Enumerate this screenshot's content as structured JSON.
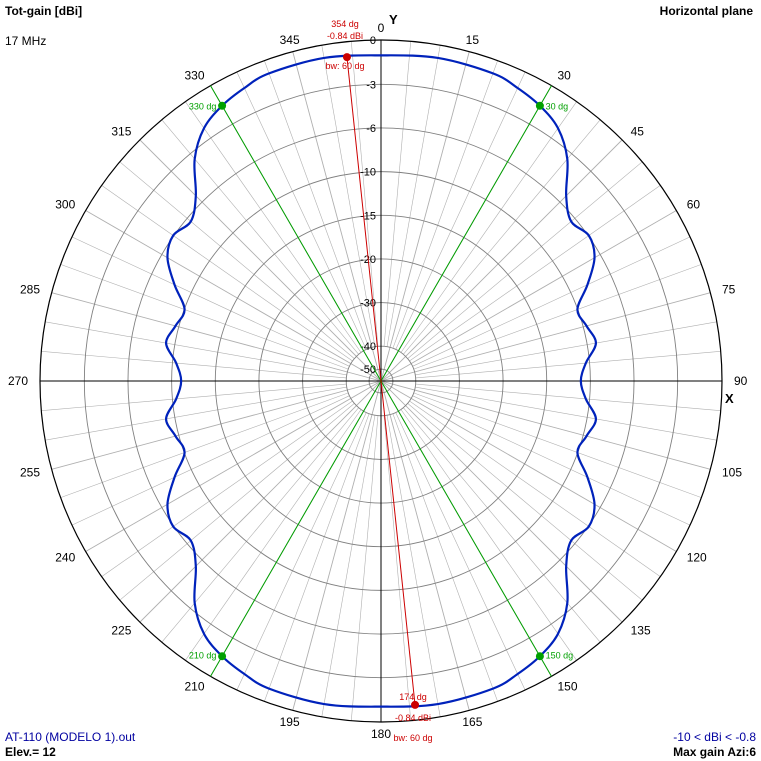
{
  "header": {
    "gain_label": "Tot-gain [dBi]",
    "plane_label": "Horizontal plane",
    "frequency": "17 MHz"
  },
  "footer": {
    "filename": "AT-110 (MODELO 1).out",
    "elevation": "Elev.= 12",
    "range_note": "-10 < dBi < -0.8",
    "max_gain_azimuth": "Max gain Azi:6"
  },
  "colors": {
    "pattern": "#0022bb",
    "beam_markers": "#00a000",
    "max_gain_markers": "#cc0000",
    "grid_circles": "#808080",
    "grid_spokes": "#b0b0b0",
    "axes": "#000000"
  },
  "chart_data": {
    "type": "polar",
    "title": "Tot-gain [dBi]",
    "plane": "Horizontal plane",
    "x_axis_label": "X",
    "y_axis_label": "Y",
    "angle_ticks": [
      0,
      15,
      30,
      45,
      60,
      75,
      90,
      105,
      120,
      135,
      150,
      165,
      180,
      195,
      210,
      225,
      240,
      255,
      270,
      285,
      300,
      315,
      330,
      345
    ],
    "gain_ticks": [
      "0",
      "-3",
      "-6",
      "-10",
      "-15",
      "-20",
      "-30",
      "-40",
      "-50"
    ],
    "gain_tick_values": [
      0,
      -3,
      -6,
      -10,
      -15,
      -20,
      -30,
      -40,
      -50
    ],
    "gain_tick_radii": [
      1.0,
      0.87,
      0.742,
      0.614,
      0.486,
      0.358,
      0.23,
      0.102,
      0.035
    ],
    "series": [
      {
        "azimuth_deg": [
          0,
          10,
          20,
          25,
          30,
          35,
          40,
          45,
          50,
          55,
          60,
          65,
          70,
          75,
          80,
          85,
          90,
          95,
          100,
          105,
          110,
          115,
          120,
          125,
          130,
          135,
          140,
          145,
          150,
          155,
          160,
          170,
          180,
          190,
          200,
          205,
          210,
          215,
          220,
          225,
          230,
          235,
          240,
          245,
          250,
          255,
          260,
          265,
          270,
          275,
          280,
          285,
          290,
          295,
          300,
          305,
          310,
          315,
          320,
          325,
          330,
          335,
          340,
          350
        ],
        "radius_fraction": [
          0.955,
          0.962,
          0.96,
          0.948,
          0.932,
          0.905,
          0.85,
          0.768,
          0.728,
          0.744,
          0.723,
          0.668,
          0.613,
          0.624,
          0.64,
          0.603,
          0.586,
          0.603,
          0.64,
          0.624,
          0.613,
          0.668,
          0.723,
          0.744,
          0.728,
          0.768,
          0.85,
          0.905,
          0.932,
          0.948,
          0.96,
          0.962,
          0.955,
          0.962,
          0.96,
          0.948,
          0.932,
          0.905,
          0.85,
          0.768,
          0.728,
          0.744,
          0.723,
          0.668,
          0.613,
          0.624,
          0.64,
          0.603,
          0.586,
          0.603,
          0.64,
          0.624,
          0.613,
          0.668,
          0.723,
          0.744,
          0.728,
          0.768,
          0.85,
          0.905,
          0.932,
          0.948,
          0.96,
          0.962
        ]
      }
    ],
    "beamwidth_lines": [
      {
        "angle_deg": 30,
        "label": "30 dg"
      },
      {
        "angle_deg": 150,
        "label": "150 dg"
      },
      {
        "angle_deg": 210,
        "label": "210 dg"
      },
      {
        "angle_deg": 330,
        "label": "330 dg"
      }
    ],
    "max_gain_markers": [
      {
        "angle_deg": 354,
        "angle_label": "354 dg",
        "gain_label": "-0.84 dBi",
        "bw_label": "bw: 60 dg"
      },
      {
        "angle_deg": 174,
        "angle_label": "174 dg",
        "gain_label": "-0.84 dBi",
        "bw_label": "bw: 60 dg"
      }
    ],
    "legend": "none"
  }
}
